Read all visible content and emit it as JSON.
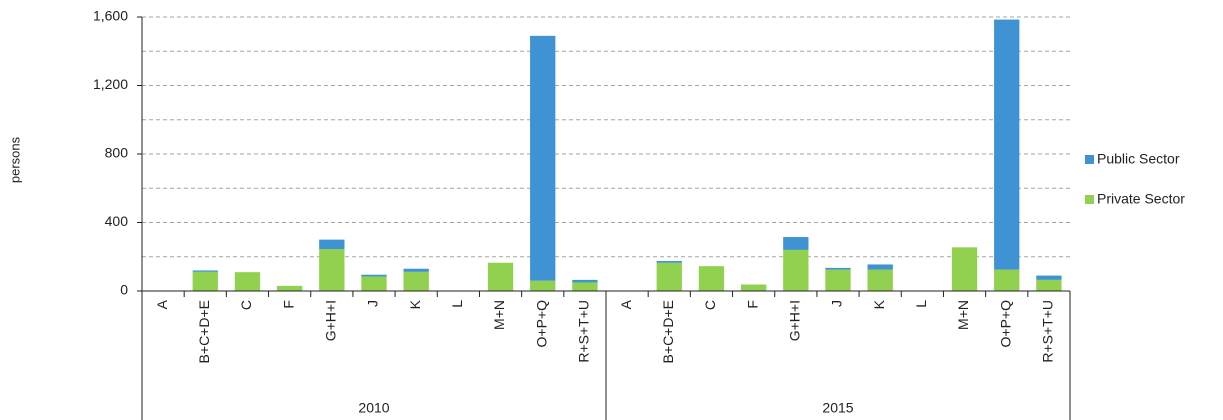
{
  "chart_data": {
    "type": "stacked_bar",
    "y_label": "persons",
    "groups": [
      "2010",
      "2015"
    ],
    "categories": [
      "A",
      "B+C+D+E",
      "C",
      "F",
      "G+H+I",
      "J",
      "K",
      "L",
      "M+N",
      "O+P+Q",
      "R+S+T+U",
      "A",
      "B+C+D+E",
      "C",
      "F",
      "G+H+I",
      "J",
      "K",
      "L",
      "M+N",
      "O+P+Q",
      "R+S+T+U"
    ],
    "series": [
      {
        "name": "Private Sector",
        "color": "#92d050",
        "values": [
          0,
          112,
          110,
          30,
          245,
          85,
          112,
          0,
          165,
          60,
          50,
          0,
          165,
          145,
          38,
          240,
          125,
          125,
          0,
          255,
          125,
          65
        ]
      },
      {
        "name": "Public Sector",
        "color": "#3f93d2",
        "values": [
          0,
          8,
          0,
          0,
          55,
          10,
          18,
          0,
          0,
          1430,
          15,
          0,
          10,
          0,
          0,
          75,
          10,
          30,
          0,
          0,
          1460,
          25
        ]
      }
    ],
    "ylim": [
      0,
      1600
    ],
    "yticks": [
      0,
      400,
      800,
      {
        "value": 1200,
        "label": "1,200"
      },
      {
        "value": 1600,
        "label": "1,600"
      }
    ],
    "yminorticks": [
      200,
      600,
      1000,
      1400
    ],
    "grid": true,
    "legend": "right"
  }
}
